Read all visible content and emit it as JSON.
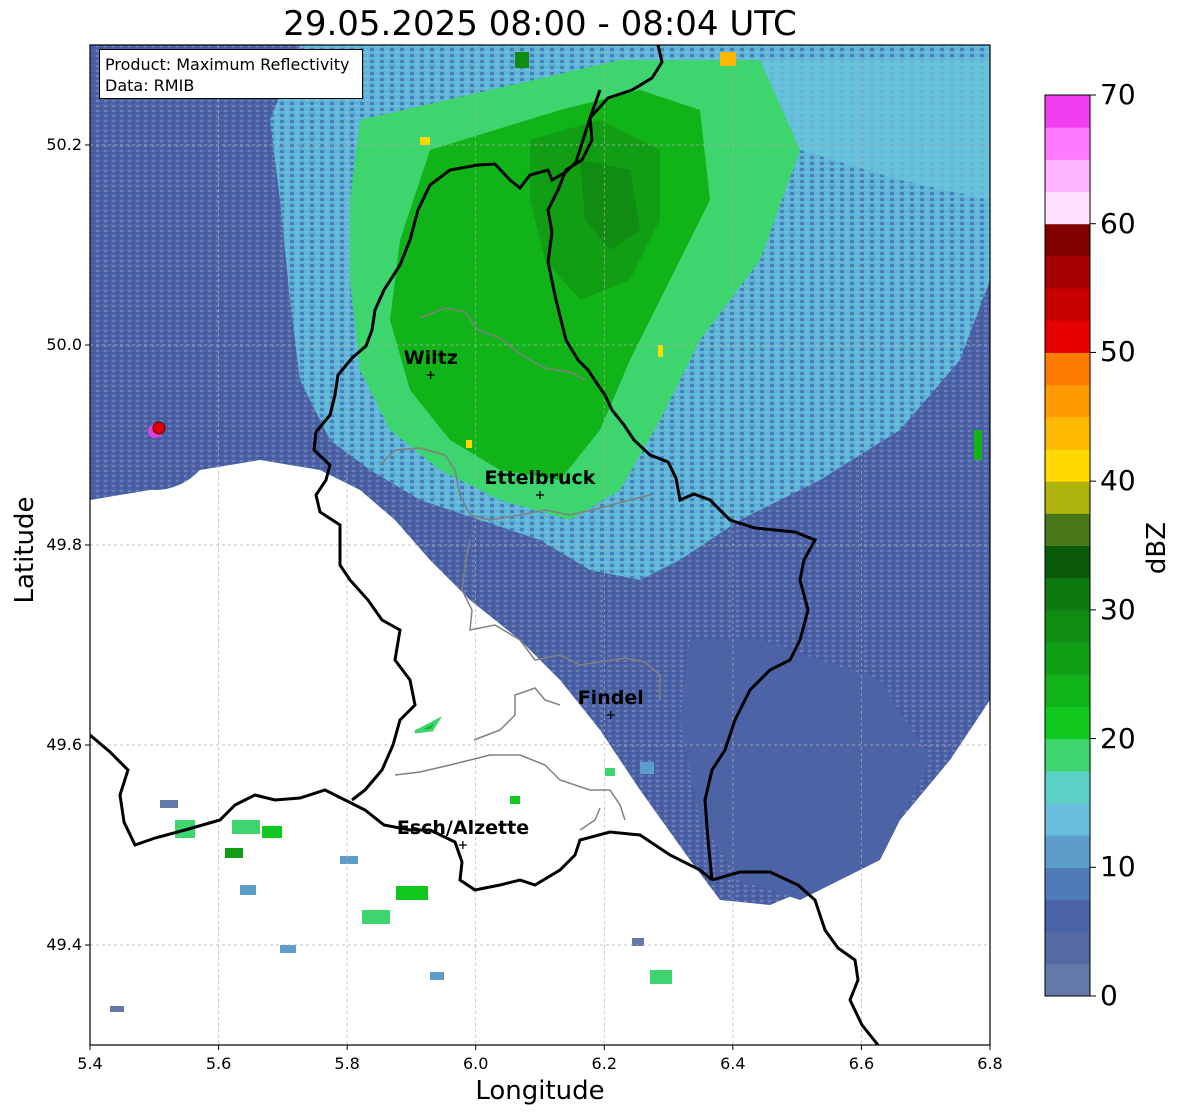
{
  "title": "29.05.2025 08:00 - 08:04 UTC",
  "info": {
    "product": "Product: Maximum Reflectivity",
    "source": "Data: RMIB"
  },
  "axes": {
    "xlabel": "Longitude",
    "ylabel": "Latitude",
    "xlim": [
      5.4,
      6.8
    ],
    "ylim": [
      49.3,
      50.3
    ],
    "xticks": [
      "5.4",
      "5.6",
      "5.8",
      "6.0",
      "6.2",
      "6.4",
      "6.6",
      "6.8"
    ],
    "yticks": [
      "49.4",
      "49.6",
      "49.8",
      "50.0",
      "50.2"
    ],
    "grid": true
  },
  "colorbar": {
    "label": "dBZ",
    "range": [
      0,
      70
    ],
    "ticks": [
      "0",
      "10",
      "20",
      "30",
      "40",
      "50",
      "60",
      "70"
    ],
    "colors": [
      "#6478aa",
      "#5569a3",
      "#4a63a6",
      "#4f7bb6",
      "#5c9dc9",
      "#67bfdd",
      "#5ad1c4",
      "#3ed46e",
      "#10c81e",
      "#11b418",
      "#119e14",
      "#108c12",
      "#0c7a10",
      "#0a5a0a",
      "#49781a",
      "#adb30b",
      "#ffd800",
      "#ffb800",
      "#ff9b00",
      "#ff7b00",
      "#e60000",
      "#c80000",
      "#a70000",
      "#820000",
      "#ffe0ff",
      "#ffb5ff",
      "#ff79ff",
      "#f03ef0"
    ]
  },
  "cities": [
    {
      "name": "Wiltz",
      "lon": 5.93,
      "lat": 49.97
    },
    {
      "name": "Ettelbruck",
      "lon": 6.1,
      "lat": 49.85
    },
    {
      "name": "Findel",
      "lon": 6.21,
      "lat": 49.63
    },
    {
      "name": "Esch/Alzette",
      "lon": 5.98,
      "lat": 49.5
    }
  ],
  "radar_site": {
    "lon": 5.505,
    "lat": 49.915
  }
}
